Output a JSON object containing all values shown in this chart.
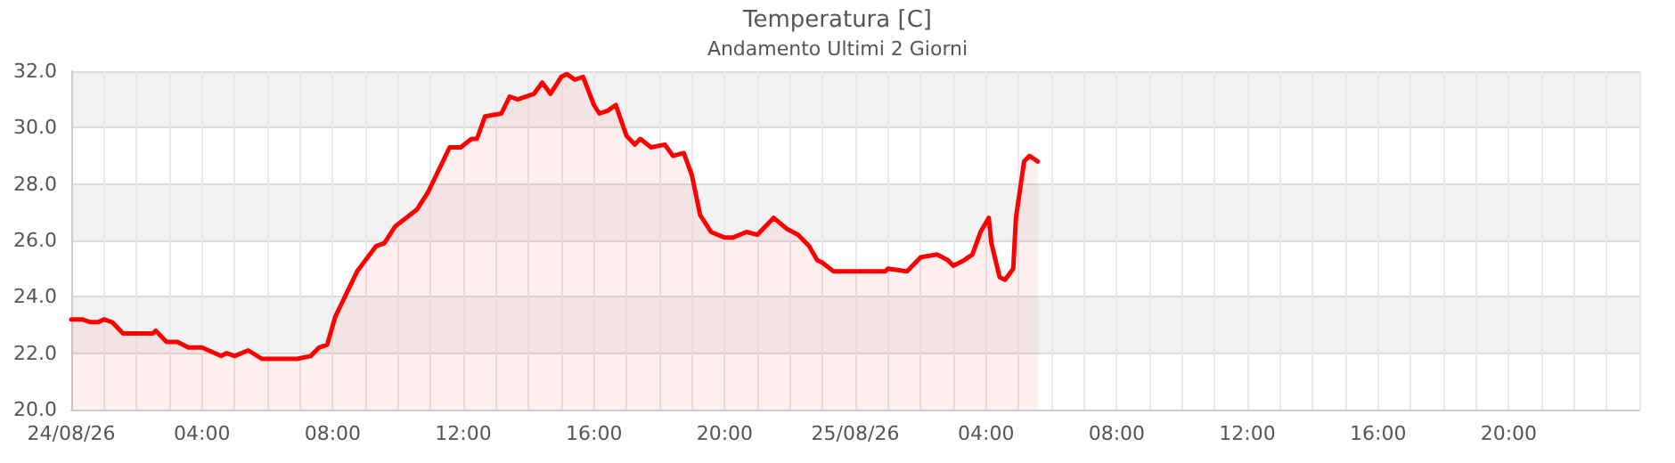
{
  "chart_data": {
    "type": "area",
    "title": "Temperatura [C]",
    "subtitle": "Andamento Ultimi 2 Giorni",
    "x": [
      "--08-24T00:00",
      "--08-24T00:20",
      "--08-24T00:35",
      "--08-24T00:50",
      "--08-24T01:00",
      "--08-24T01:15",
      "--08-24T01:35",
      "--08-24T02:30",
      "--08-24T02:35",
      "--08-24T02:55",
      "--08-24T03:15",
      "--08-24T03:35",
      "--08-24T04:00",
      "--08-24T04:35",
      "--08-24T04:45",
      "--08-24T05:00",
      "--08-24T05:25",
      "--08-24T05:50",
      "--08-24T06:55",
      "--08-24T07:20",
      "--08-24T07:35",
      "--08-24T07:50",
      "--08-24T08:05",
      "--08-24T08:45",
      "--08-24T09:20",
      "--08-24T09:35",
      "--08-24T09:55",
      "--08-24T10:15",
      "--08-24T10:35",
      "--08-24T10:55",
      "--08-24T11:35",
      "--08-24T11:55",
      "--08-24T12:15",
      "--08-24T12:25",
      "--08-24T12:40",
      "--08-24T13:10",
      "--08-24T13:25",
      "--08-24T13:40",
      "--08-24T14:10",
      "--08-24T14:25",
      "--08-24T14:40",
      "--08-24T15:00",
      "--08-24T15:10",
      "--08-24T15:25",
      "--08-24T15:40",
      "--08-24T16:00",
      "--08-24T16:10",
      "--08-24T16:25",
      "--08-24T16:40",
      "--08-24T17:00",
      "--08-24T17:15",
      "--08-24T17:25",
      "--08-24T17:45",
      "--08-24T18:10",
      "--08-24T18:25",
      "--08-24T18:45",
      "--08-24T19:00",
      "--08-24T19:15",
      "--08-24T19:35",
      "--08-24T20:00",
      "--08-24T20:15",
      "--08-24T20:40",
      "--08-24T21:00",
      "--08-24T21:15",
      "--08-24T21:30",
      "--08-24T21:55",
      "--08-24T22:15",
      "--08-24T22:35",
      "--08-24T22:50",
      "--08-24T23:00",
      "--08-24T23:20",
      "--08-25T00:55",
      "--08-25T01:00",
      "--08-25T01:35",
      "--08-25T02:00",
      "--08-25T02:30",
      "--08-25T02:50",
      "--08-25T03:00",
      "--08-25T03:20",
      "--08-25T03:35",
      "--08-25T03:50",
      "--08-25T04:05",
      "--08-25T04:10",
      "--08-25T04:25",
      "--08-25T04:35",
      "--08-25T04:50",
      "--08-25T04:55",
      "--08-25T05:10",
      "--08-25T05:20",
      "--08-25T05:35"
    ],
    "series": [
      {
        "color": "#ff0000",
        "values": [
          23.2,
          23.2,
          23.1,
          23.1,
          23.2,
          23.1,
          22.7,
          22.7,
          22.8,
          22.4,
          22.4,
          22.2,
          22.2,
          21.9,
          22.0,
          21.9,
          22.1,
          21.8,
          21.8,
          21.9,
          22.2,
          22.3,
          23.3,
          24.9,
          25.8,
          25.9,
          26.5,
          26.8,
          27.1,
          27.7,
          29.3,
          29.3,
          29.6,
          29.6,
          30.4,
          30.5,
          31.1,
          31.0,
          31.2,
          31.6,
          31.2,
          31.8,
          31.9,
          31.7,
          31.8,
          30.8,
          30.5,
          30.6,
          30.8,
          29.7,
          29.4,
          29.6,
          29.3,
          29.4,
          29.0,
          29.1,
          28.3,
          26.9,
          26.3,
          26.1,
          26.1,
          26.3,
          26.2,
          26.5,
          26.8,
          26.4,
          26.2,
          25.8,
          25.3,
          25.2,
          24.9,
          24.9,
          25.0,
          24.9,
          25.4,
          25.5,
          25.3,
          25.1,
          25.3,
          25.5,
          26.3,
          26.8,
          25.9,
          24.7,
          24.6,
          25.0,
          26.8,
          28.8,
          29.0,
          28.8
        ]
      }
    ],
    "xlim": [
      "--08-24T00:00",
      "--08-26T00:00"
    ],
    "xticks": [
      {
        "value": "--08-24T00:00",
        "label": "24/08/26"
      },
      {
        "value": "--08-24T04:00",
        "label": "04:00"
      },
      {
        "value": "--08-24T08:00",
        "label": "08:00"
      },
      {
        "value": "--08-24T12:00",
        "label": "12:00"
      },
      {
        "value": "--08-24T16:00",
        "label": "16:00"
      },
      {
        "value": "--08-24T20:00",
        "label": "20:00"
      },
      {
        "value": "--08-25T00:00",
        "label": "25/08/26"
      },
      {
        "value": "--08-25T04:00",
        "label": "04:00"
      },
      {
        "value": "--08-25T08:00",
        "label": "08:00"
      },
      {
        "value": "--08-25T12:00",
        "label": "12:00"
      },
      {
        "value": "--08-25T16:00",
        "label": "16:00"
      },
      {
        "value": "--08-25T20:00",
        "label": "20:00"
      }
    ],
    "ylim": [
      20,
      32
    ],
    "yticks": [
      {
        "value": 20,
        "label": "20.0"
      },
      {
        "value": 22,
        "label": "22.0"
      },
      {
        "value": 24,
        "label": "24.0"
      },
      {
        "value": 26,
        "label": "26.0"
      },
      {
        "value": 28,
        "label": "28.0"
      },
      {
        "value": 30,
        "label": "30.0"
      },
      {
        "value": 32,
        "label": "32.0"
      }
    ],
    "grid": true,
    "marker": "none",
    "line_style": "solid"
  }
}
